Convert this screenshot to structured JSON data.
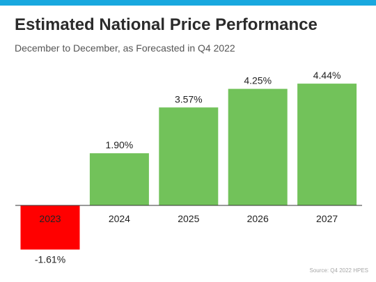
{
  "header": {
    "title": "Estimated National Price Performance",
    "subtitle": "December to December, as Forecasted in Q4 2022"
  },
  "footer": {
    "source": "Source: Q4 2022 HPES"
  },
  "colors": {
    "accent_bar": "#19a8df",
    "positive": "#72c25a",
    "negative": "#ff0000"
  },
  "chart_data": {
    "type": "bar",
    "title": "Estimated National Price Performance",
    "subtitle": "December to December, as Forecasted in Q4 2022",
    "categories": [
      "2023",
      "2024",
      "2025",
      "2026",
      "2027"
    ],
    "values": [
      -1.61,
      1.9,
      3.57,
      4.25,
      4.44
    ],
    "value_labels": [
      "-1.61%",
      "1.90%",
      "3.57%",
      "4.25%",
      "4.44%"
    ],
    "xlabel": "",
    "ylabel": "",
    "ylim": [
      -1.61,
      4.44
    ],
    "grid": false,
    "legend": "none"
  }
}
